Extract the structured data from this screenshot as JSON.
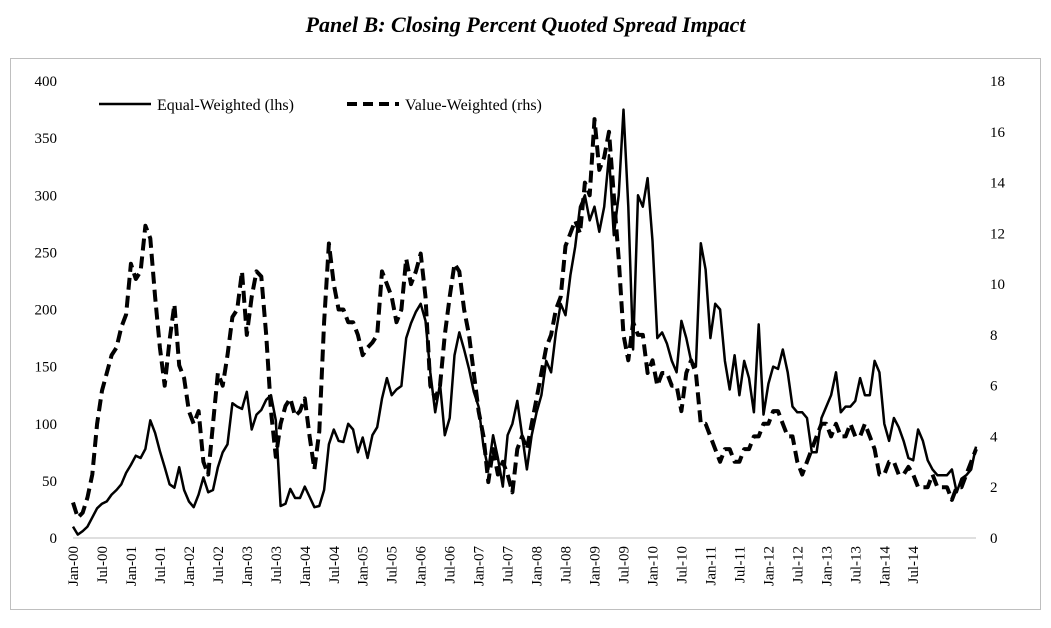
{
  "chart_data": {
    "type": "line",
    "title": "Panel B: Closing Percent Quoted Spread Impact",
    "xlabel": "",
    "ylabel": "",
    "ylim": [
      0,
      400
    ],
    "y2lim": [
      0,
      18
    ],
    "y_ticks": [
      0,
      50,
      100,
      150,
      200,
      250,
      300,
      350,
      400
    ],
    "y2_ticks": [
      0,
      2,
      4,
      6,
      8,
      10,
      12,
      14,
      16,
      18
    ],
    "x_tick_labels": [
      "Jan-00",
      "Jul-00",
      "Jan-01",
      "Jul-01",
      "Jan-02",
      "Jul-02",
      "Jan-03",
      "Jul-03",
      "Jan-04",
      "Jul-04",
      "Jan-05",
      "Jul-05",
      "Jan-06",
      "Jul-06",
      "Jan-07",
      "Jul-07",
      "Jan-08",
      "Jul-08",
      "Jan-09",
      "Jul-09",
      "Jan-10",
      "Jul-10",
      "Jan-11",
      "Jul-11",
      "Jan-12",
      "Jul-12",
      "Jan-13",
      "Jul-13",
      "Jan-14",
      "Jul-14"
    ],
    "grid": false,
    "legend_position": "top-left",
    "series": [
      {
        "name": "Equal-Weighted (lhs)",
        "axis": "left",
        "style": "solid",
        "values": [
          10,
          3,
          6,
          10,
          18,
          26,
          30,
          32,
          38,
          42,
          47,
          57,
          64,
          72,
          70,
          78,
          103,
          92,
          76,
          62,
          47,
          44,
          62,
          42,
          32,
          27,
          38,
          53,
          40,
          42,
          62,
          75,
          82,
          118,
          115,
          113,
          128,
          95,
          108,
          112,
          121,
          125,
          103,
          28,
          30,
          43,
          35,
          35,
          45,
          36,
          27,
          28,
          42,
          82,
          95,
          85,
          84,
          100,
          95,
          75,
          88,
          70,
          90,
          97,
          122,
          140,
          125,
          130,
          133,
          175,
          188,
          198,
          205,
          190,
          145,
          110,
          135,
          90,
          105,
          160,
          180,
          165,
          148,
          128,
          115,
          80,
          60,
          90,
          70,
          45,
          90,
          100,
          120,
          90,
          60,
          90,
          110,
          125,
          155,
          145,
          180,
          205,
          195,
          230,
          255,
          290,
          300,
          278,
          290,
          268,
          290,
          335,
          265,
          300,
          375,
          290,
          165,
          300,
          290,
          315,
          260,
          175,
          180,
          170,
          155,
          145,
          190,
          175,
          155,
          150,
          258,
          235,
          175,
          205,
          200,
          155,
          130,
          160,
          125,
          155,
          140,
          110,
          187,
          108,
          135,
          150,
          148,
          165,
          145,
          115,
          110,
          110,
          105,
          75,
          75,
          105,
          115,
          125,
          145,
          110,
          115,
          115,
          120,
          140,
          125,
          125,
          155,
          145,
          100,
          85,
          105,
          97,
          85,
          70,
          68,
          95,
          85,
          68,
          60,
          55,
          55,
          55,
          60,
          40,
          52,
          55,
          60,
          80
        ]
      },
      {
        "name": "Value-Weighted (rhs)",
        "axis": "right",
        "style": "dashed",
        "values": [
          1.4,
          0.8,
          1.0,
          1.6,
          2.5,
          4.5,
          5.8,
          6.5,
          7.2,
          7.5,
          8.3,
          8.8,
          10.8,
          10.2,
          10.5,
          12.3,
          11.8,
          9.5,
          7.5,
          6.0,
          7.8,
          9.2,
          6.8,
          6.3,
          5.0,
          4.5,
          5.0,
          3.0,
          2.5,
          4.5,
          6.5,
          6.0,
          7.2,
          8.7,
          9.0,
          10.5,
          8.0,
          9.5,
          10.5,
          10.3,
          8.0,
          5.0,
          3.2,
          4.5,
          5.2,
          5.5,
          4.8,
          5.0,
          5.5,
          4.0,
          2.7,
          4.2,
          8.5,
          11.6,
          10.0,
          9.0,
          9.0,
          8.5,
          8.5,
          8.0,
          7.2,
          7.5,
          7.7,
          8.0,
          10.5,
          10.0,
          9.5,
          8.5,
          9.0,
          11.0,
          10.0,
          10.5,
          11.2,
          9.5,
          6.0,
          5.5,
          6.0,
          8.0,
          9.5,
          10.8,
          10.5,
          9.0,
          8.0,
          6.5,
          5.0,
          4.0,
          2.2,
          3.5,
          2.5,
          3.0,
          2.5,
          1.8,
          3.5,
          4.0,
          3.5,
          4.5,
          5.5,
          6.5,
          7.5,
          8.0,
          9.0,
          9.5,
          11.5,
          12.0,
          12.5,
          12.0,
          14.0,
          13.5,
          16.5,
          14.5,
          15.0,
          16.0,
          13.5,
          11.0,
          8.0,
          7.0,
          8.5,
          8.0,
          8.0,
          6.5,
          7.0,
          6.0,
          6.5,
          6.5,
          6.0,
          6.0,
          5.0,
          6.5,
          7.0,
          6.5,
          4.5,
          4.5,
          4.0,
          3.5,
          3.0,
          3.5,
          3.5,
          3.0,
          3.0,
          3.5,
          3.5,
          4.0,
          4.0,
          4.5,
          4.5,
          5.0,
          5.0,
          4.5,
          4.0,
          4.0,
          3.0,
          2.5,
          3.0,
          3.5,
          4.0,
          4.5,
          4.5,
          4.0,
          4.5,
          4.0,
          4.0,
          4.5,
          4.0,
          4.0,
          4.5,
          4.0,
          3.5,
          2.5,
          2.5,
          3.0,
          3.0,
          2.5,
          2.5,
          2.8,
          2.5,
          2.0,
          2.0,
          2.0,
          2.5,
          2.0,
          2.0,
          2.0,
          1.5,
          2.0,
          2.0,
          2.5,
          3.0,
          3.5
        ]
      }
    ]
  }
}
